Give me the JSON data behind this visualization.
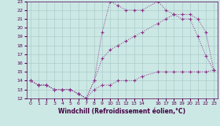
{
  "xlabel": "Windchill (Refroidissement éolien,°C)",
  "bg_color": "#cce8e4",
  "line_color": "#883388",
  "grid_color": "#aacccc",
  "xlim": [
    -0.5,
    23.5
  ],
  "ylim": [
    12,
    23
  ],
  "xticks": [
    0,
    1,
    2,
    3,
    4,
    5,
    6,
    7,
    8,
    9,
    10,
    11,
    12,
    13,
    14,
    16,
    17,
    18,
    19,
    20,
    21,
    22,
    23
  ],
  "yticks": [
    12,
    13,
    14,
    15,
    16,
    17,
    18,
    19,
    20,
    21,
    22,
    23
  ],
  "line1_x": [
    0,
    1,
    2,
    3,
    4,
    5,
    6,
    7,
    8,
    9,
    10,
    11,
    12,
    13,
    14,
    16,
    17,
    18,
    19,
    20,
    21,
    22,
    23
  ],
  "line1_y": [
    14,
    13.5,
    13.5,
    13,
    13,
    13,
    12.5,
    12,
    14,
    19.5,
    23,
    22.5,
    22,
    22,
    22,
    23,
    22,
    21.5,
    21,
    21,
    19,
    16.8,
    15.2
  ],
  "line2_x": [
    0,
    1,
    2,
    3,
    4,
    5,
    6,
    7,
    8,
    9,
    10,
    11,
    12,
    13,
    14,
    16,
    17,
    18,
    19,
    20,
    21,
    22,
    23
  ],
  "line2_y": [
    14,
    13.5,
    13.5,
    13,
    13,
    13,
    12.5,
    12,
    14,
    16.5,
    17.5,
    18,
    18.5,
    19,
    19.5,
    20.5,
    21,
    21.5,
    21.5,
    21.5,
    21,
    19.5,
    15.2
  ],
  "line3_x": [
    0,
    1,
    2,
    3,
    4,
    5,
    6,
    7,
    8,
    9,
    10,
    11,
    12,
    13,
    14,
    16,
    17,
    18,
    19,
    20,
    21,
    22,
    23
  ],
  "line3_y": [
    14,
    13.5,
    13.5,
    13,
    13,
    13,
    12.5,
    12,
    13,
    13.5,
    13.5,
    14,
    14,
    14,
    14.5,
    15,
    15,
    15,
    15,
    15,
    15,
    15,
    15.2
  ]
}
